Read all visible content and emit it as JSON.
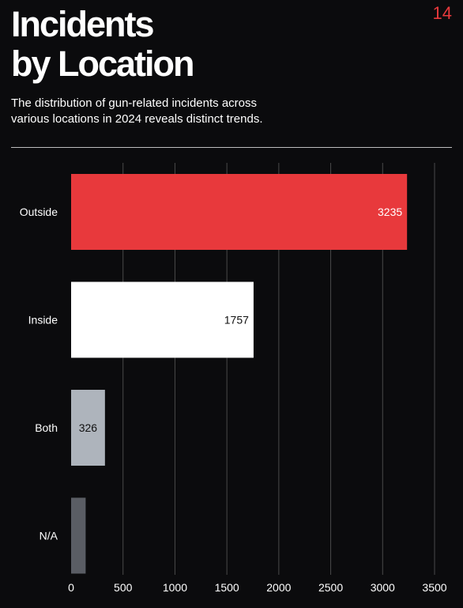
{
  "page_number": "14",
  "title_lines": [
    "Incidents",
    "by Location"
  ],
  "subtitle_lines": [
    "The distribution of gun-related incidents across",
    "various locations in 2024 reveals distinct trends."
  ],
  "chart_data": {
    "type": "bar",
    "orientation": "horizontal",
    "categories": [
      "Outside",
      "Inside",
      "Both",
      "N/A"
    ],
    "values": [
      3235,
      1757,
      326,
      140
    ],
    "value_labels": [
      "3235",
      "1757",
      "326",
      ""
    ],
    "bar_colors": [
      "#e8393c",
      "#ffffff",
      "#aeb4bc",
      "#5a5d64"
    ],
    "value_label_colors": [
      "#ffffff",
      "#111111",
      "#111111",
      "#111111"
    ],
    "xlim": [
      0,
      3500
    ],
    "x_ticks": [
      0,
      500,
      1000,
      1500,
      2000,
      2500,
      3000,
      3500
    ],
    "x_tick_labels": [
      "0",
      "500",
      "1000",
      "1500",
      "2000",
      "2500",
      "3000",
      "3500"
    ],
    "grid": true,
    "grid_color": "#4a4a4a",
    "legend": "none"
  }
}
